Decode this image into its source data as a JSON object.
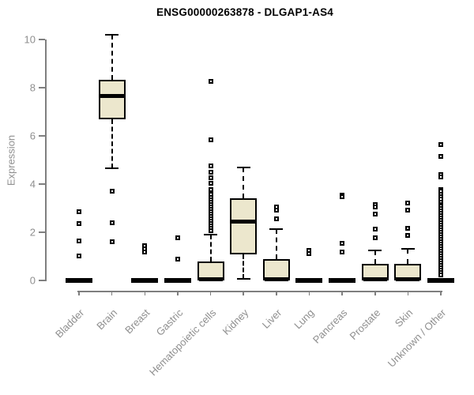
{
  "chart_data": {
    "type": "boxplot",
    "title": "ENSG00000263878 - DLGAP1-AS4",
    "ylabel": "Expression",
    "ylim": [
      0,
      10
    ],
    "yticks": [
      0,
      2,
      4,
      6,
      8,
      10
    ],
    "grid": false,
    "legend": false,
    "categories": [
      "Bladder",
      "Brain",
      "Breast",
      "Gastric",
      "Hematopoietic cells",
      "Kidney",
      "Liver",
      "Lung",
      "Pancreas",
      "Prostate",
      "Skin",
      "Unknown / Other"
    ],
    "boxes": [
      {
        "category": "Bladder",
        "min": 0,
        "q1": 0,
        "median": 0,
        "q3": 0,
        "max": 0,
        "outliers": [
          2.85,
          2.36,
          1.64,
          1.02
        ]
      },
      {
        "category": "Brain",
        "min": 4.66,
        "q1": 6.69,
        "median": 7.67,
        "q3": 8.33,
        "max": 10.2,
        "outliers": [
          3.7,
          2.39,
          1.61
        ]
      },
      {
        "category": "Breast",
        "min": 0,
        "q1": 0,
        "median": 0,
        "q3": 0,
        "max": 0,
        "outliers": [
          1.45,
          1.31,
          1.18
        ]
      },
      {
        "category": "Gastric",
        "min": 0,
        "q1": 0,
        "median": 0,
        "q3": 0,
        "max": 0,
        "outliers": [
          1.77,
          0.89
        ]
      },
      {
        "category": "Hematopoietic cells",
        "min": 0,
        "q1": 0,
        "median": 0.05,
        "q3": 0.79,
        "max": 1.9,
        "outliers": [
          8.26,
          5.84,
          4.75,
          4.49,
          4.26,
          4.03,
          3.77,
          3.57,
          3.44,
          3.34,
          3.25,
          3.15,
          3.05,
          2.95,
          2.85,
          2.75,
          2.66,
          2.56,
          2.46,
          2.36,
          2.26,
          2.16,
          2.07
        ]
      },
      {
        "category": "Kidney",
        "min": 0.07,
        "q1": 1.08,
        "median": 2.43,
        "q3": 3.41,
        "max": 4.69,
        "outliers": []
      },
      {
        "category": "Liver",
        "min": 0,
        "q1": 0,
        "median": 0.05,
        "q3": 0.89,
        "max": 2.13,
        "outliers": [
          3.05,
          2.92,
          2.56
        ]
      },
      {
        "category": "Lung",
        "min": 0,
        "q1": 0,
        "median": 0,
        "q3": 0,
        "max": 0,
        "outliers": [
          1.25,
          1.11
        ]
      },
      {
        "category": "Pancreas",
        "min": 0,
        "q1": 0,
        "median": 0,
        "q3": 0,
        "max": 0,
        "outliers": [
          3.54,
          3.48,
          1.54,
          1.18
        ]
      },
      {
        "category": "Prostate",
        "min": 0,
        "q1": 0,
        "median": 0.05,
        "q3": 0.69,
        "max": 1.25,
        "outliers": [
          3.15,
          3.05,
          2.75,
          2.13,
          1.77
        ]
      },
      {
        "category": "Skin",
        "min": 0,
        "q1": 0,
        "median": 0.05,
        "q3": 0.69,
        "max": 1.31,
        "outliers": [
          3.21,
          2.92,
          2.16,
          1.87
        ]
      },
      {
        "category": "Unknown / Other",
        "min": 0,
        "q1": 0,
        "median": 0,
        "q3": 0,
        "max": 0,
        "outliers": [
          5.64,
          5.15,
          4.39,
          4.3,
          3.77,
          3.7,
          3.57,
          3.48,
          3.38,
          3.25,
          3.15,
          3.08,
          2.98,
          2.89,
          2.79,
          2.69,
          2.59,
          2.49,
          2.39,
          2.3,
          2.2,
          2.1,
          2.0,
          1.9,
          1.8,
          1.7,
          1.61,
          1.51,
          1.41,
          1.31,
          1.21,
          1.11,
          1.02,
          0.92,
          0.82,
          0.72,
          0.62,
          0.52,
          0.43,
          0.33,
          0.23
        ]
      }
    ],
    "colors": {
      "box_fill": "#ece7cd",
      "box_border": "#000000",
      "axis": "#7f7f7f",
      "tick_label": "#8f8f8f",
      "title": "#000000"
    }
  }
}
